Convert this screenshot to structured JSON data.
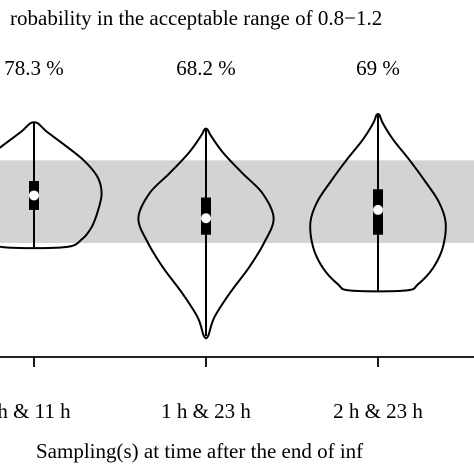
{
  "chart_data": {
    "type": "violin",
    "title": "robability in the acceptable range of 0.8−1.2",
    "xlabel": "Sampling(s) at time after the end of inf",
    "acceptable_band": [
      0.8,
      1.2
    ],
    "ylim": [
      0.35,
      1.55
    ],
    "categories": [
      "h & 11 h",
      "1 h & 23 h",
      "2 h & 23 h"
    ],
    "probability_labels": [
      "78.3 %",
      "68.2 %",
      "69 %"
    ],
    "violins": [
      {
        "category": "h & 11 h",
        "min": 0.78,
        "q1": 0.96,
        "median": 1.03,
        "q3": 1.1,
        "max": 1.38,
        "profile": [
          [
            0.78,
            0.45
          ],
          [
            0.82,
            0.7
          ],
          [
            0.88,
            0.84
          ],
          [
            0.96,
            0.93
          ],
          [
            1.04,
            0.98
          ],
          [
            1.12,
            0.92
          ],
          [
            1.2,
            0.72
          ],
          [
            1.28,
            0.42
          ],
          [
            1.34,
            0.18
          ],
          [
            1.38,
            0.05
          ]
        ]
      },
      {
        "category": "1 h & 23 h",
        "min": 0.35,
        "q1": 0.84,
        "median": 0.92,
        "q3": 1.02,
        "max": 1.35,
        "profile": [
          [
            0.35,
            0.03
          ],
          [
            0.44,
            0.12
          ],
          [
            0.56,
            0.35
          ],
          [
            0.68,
            0.62
          ],
          [
            0.8,
            0.84
          ],
          [
            0.92,
            0.98
          ],
          [
            1.04,
            0.82
          ],
          [
            1.14,
            0.52
          ],
          [
            1.24,
            0.24
          ],
          [
            1.32,
            0.07
          ],
          [
            1.35,
            0.02
          ]
        ]
      },
      {
        "category": "2 h & 23 h",
        "min": 0.57,
        "q1": 0.84,
        "median": 0.96,
        "q3": 1.06,
        "max": 1.42,
        "profile": [
          [
            0.57,
            0.4
          ],
          [
            0.6,
            0.58
          ],
          [
            0.68,
            0.8
          ],
          [
            0.78,
            0.94
          ],
          [
            0.9,
            0.98
          ],
          [
            1.0,
            0.88
          ],
          [
            1.1,
            0.68
          ],
          [
            1.2,
            0.46
          ],
          [
            1.3,
            0.22
          ],
          [
            1.38,
            0.07
          ],
          [
            1.42,
            0.02
          ]
        ]
      }
    ],
    "band_color": "#d3d3d3",
    "stroke_color": "#000000",
    "grid": false
  }
}
